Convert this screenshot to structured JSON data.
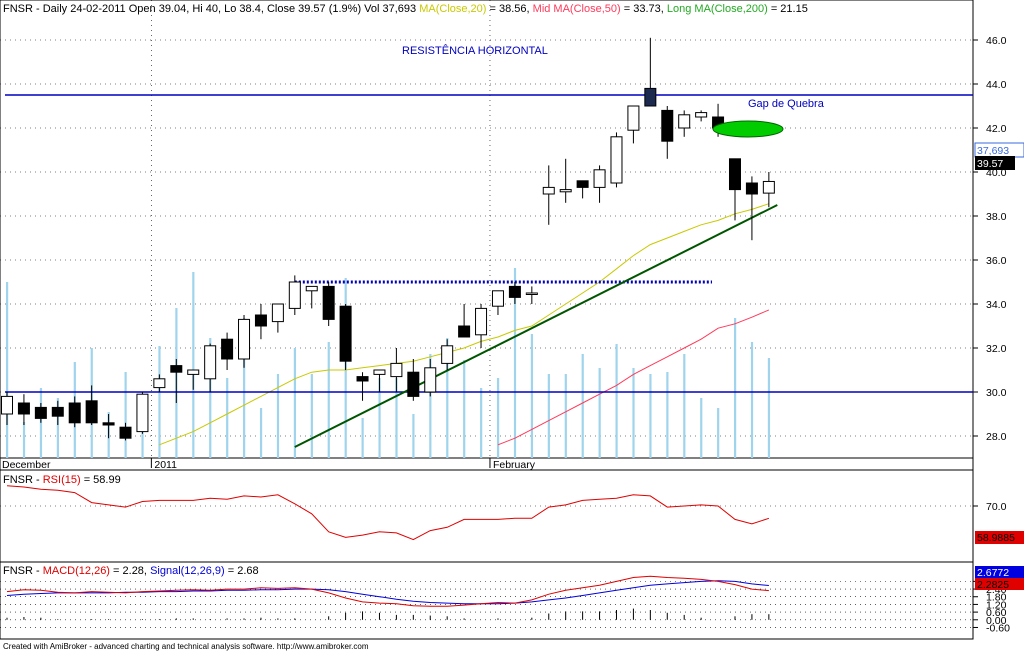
{
  "chart_data": [
    {
      "type": "candlestick",
      "header": {
        "prefix": "FNSR - Daily 24-02-2011 Open 39.04, Hi 40, Lo 38.4, Close 39.57 (1.9%) Vol 37,693",
        "ma_short": "MA(Close,20)",
        "ma_short_value": " = 38.56,",
        "ma_mid": "Mid MA(Close,50)",
        "ma_mid_value": " = 33.73,",
        "ma_long": "Long MA(Close,200)",
        "ma_long_value": " = 21.15"
      },
      "ylim": [
        27,
        47
      ],
      "yticks": [
        "46.0",
        "44.0",
        "42.0",
        "40.0",
        "38.0",
        "36.0",
        "34.0",
        "32.0",
        "30.0",
        "28.0"
      ],
      "xlabels": [
        {
          "label": "December",
          "bar": 0
        },
        {
          "label": "2011",
          "bar": 9
        },
        {
          "label": "February",
          "bar": 29
        }
      ],
      "value_labels": {
        "volume": "37,693",
        "close": "39.57"
      },
      "annotations": {
        "resistance_title": "RESISTÊNCIA HORIZONTAL",
        "gap_label": "Gap de Quebra"
      },
      "lines": {
        "resistance": 43.5,
        "support": 30.0,
        "dotted_level": 35.0,
        "trend_start": {
          "bar": 17,
          "price": 27.5
        },
        "trend_end": {
          "bar": 45.5,
          "price": 38.5
        }
      },
      "candles": [
        {
          "o": 29.0,
          "h": 30.0,
          "l": 28.5,
          "c": 29.8
        },
        {
          "o": 29.5,
          "h": 29.9,
          "l": 28.5,
          "c": 29.0
        },
        {
          "o": 29.3,
          "h": 29.5,
          "l": 28.6,
          "c": 28.8
        },
        {
          "o": 29.3,
          "h": 29.6,
          "l": 28.5,
          "c": 28.9
        },
        {
          "o": 29.5,
          "h": 29.8,
          "l": 28.4,
          "c": 28.6
        },
        {
          "o": 29.6,
          "h": 30.3,
          "l": 28.5,
          "c": 28.6
        },
        {
          "o": 28.6,
          "h": 29.0,
          "l": 27.9,
          "c": 28.5
        },
        {
          "o": 28.4,
          "h": 28.6,
          "l": 27.8,
          "c": 27.9
        },
        {
          "o": 28.2,
          "h": 30.0,
          "l": 28.1,
          "c": 29.9
        },
        {
          "o": 30.2,
          "h": 30.8,
          "l": 30.0,
          "c": 30.6
        },
        {
          "o": 31.2,
          "h": 31.5,
          "l": 29.5,
          "c": 30.9
        },
        {
          "o": 30.8,
          "h": 31.0,
          "l": 30.1,
          "c": 31.0
        },
        {
          "o": 30.6,
          "h": 32.2,
          "l": 30.0,
          "c": 32.1
        },
        {
          "o": 32.4,
          "h": 32.7,
          "l": 31.0,
          "c": 31.5
        },
        {
          "o": 31.5,
          "h": 33.5,
          "l": 31.1,
          "c": 33.3
        },
        {
          "o": 33.5,
          "h": 34.0,
          "l": 32.4,
          "c": 33.0
        },
        {
          "o": 33.2,
          "h": 34.0,
          "l": 32.7,
          "c": 34.0
        },
        {
          "o": 33.8,
          "h": 35.3,
          "l": 33.5,
          "c": 35.0
        },
        {
          "o": 34.6,
          "h": 34.8,
          "l": 33.8,
          "c": 34.8
        },
        {
          "o": 34.8,
          "h": 35.0,
          "l": 33.0,
          "c": 33.3
        },
        {
          "o": 33.9,
          "h": 34.0,
          "l": 31.0,
          "c": 31.4
        },
        {
          "o": 30.7,
          "h": 30.9,
          "l": 29.6,
          "c": 30.5
        },
        {
          "o": 30.8,
          "h": 31.0,
          "l": 30.0,
          "c": 31.0
        },
        {
          "o": 30.7,
          "h": 32.0,
          "l": 30.0,
          "c": 31.3
        },
        {
          "o": 30.9,
          "h": 31.5,
          "l": 29.6,
          "c": 29.8
        },
        {
          "o": 30.0,
          "h": 31.5,
          "l": 29.8,
          "c": 31.1
        },
        {
          "o": 31.3,
          "h": 32.4,
          "l": 31.0,
          "c": 32.1
        },
        {
          "o": 33.0,
          "h": 34.0,
          "l": 32.5,
          "c": 32.5
        },
        {
          "o": 32.6,
          "h": 34.0,
          "l": 32.0,
          "c": 33.8
        },
        {
          "o": 33.9,
          "h": 34.6,
          "l": 33.5,
          "c": 34.6
        },
        {
          "o": 34.8,
          "h": 35.0,
          "l": 34.0,
          "c": 34.3
        },
        {
          "o": 34.5,
          "h": 34.8,
          "l": 34.0,
          "c": 34.5
        },
        {
          "o": 39.0,
          "h": 40.3,
          "l": 37.6,
          "c": 39.3
        },
        {
          "o": 39.1,
          "h": 40.6,
          "l": 38.6,
          "c": 39.2
        },
        {
          "o": 39.6,
          "h": 39.6,
          "l": 38.8,
          "c": 39.3
        },
        {
          "o": 39.3,
          "h": 40.3,
          "l": 38.6,
          "c": 40.1
        },
        {
          "o": 39.5,
          "h": 41.8,
          "l": 39.3,
          "c": 41.6
        },
        {
          "o": 41.9,
          "h": 43.0,
          "l": 41.3,
          "c": 43.0
        },
        {
          "o": 43.8,
          "h": 46.1,
          "l": 43.0,
          "c": 43.0
        },
        {
          "o": 42.8,
          "h": 43.0,
          "l": 40.6,
          "c": 41.4
        },
        {
          "o": 42.0,
          "h": 42.8,
          "l": 41.6,
          "c": 42.6
        },
        {
          "o": 42.5,
          "h": 42.8,
          "l": 42.3,
          "c": 42.7
        },
        {
          "o": 42.5,
          "h": 43.1,
          "l": 41.6,
          "c": 42.0
        },
        {
          "o": 40.6,
          "h": 40.6,
          "l": 37.8,
          "c": 39.2
        },
        {
          "o": 39.5,
          "h": 39.8,
          "l": 36.9,
          "c": 39.0
        },
        {
          "o": 39.04,
          "h": 40.0,
          "l": 38.4,
          "c": 39.57
        }
      ],
      "volume_relative": [
        0.88,
        0.18,
        0.35,
        0.3,
        0.48,
        0.55,
        0.23,
        0.43,
        0.22,
        0.56,
        0.75,
        0.93,
        0.6,
        0.4,
        0.7,
        0.25,
        0.42,
        0.55,
        0.42,
        0.58,
        0.9,
        0.2,
        0.4,
        0.4,
        0.22,
        0.52,
        0.6,
        0.49,
        0.35,
        0.4,
        0.95,
        0.62,
        0.42,
        0.42,
        0.52,
        0.45,
        0.57,
        0.45,
        0.42,
        0.43,
        0.52,
        0.3,
        0.25,
        0.7,
        0.58,
        0.5
      ],
      "ma20": [
        null,
        null,
        null,
        null,
        null,
        null,
        null,
        null,
        null,
        27.6,
        27.9,
        28.2,
        28.6,
        29.0,
        29.4,
        29.8,
        30.2,
        30.6,
        30.9,
        31.0,
        31.0,
        31.1,
        31.2,
        31.3,
        31.4,
        31.6,
        31.8,
        32.0,
        32.3,
        32.5,
        32.8,
        33.0,
        33.5,
        34.0,
        34.5,
        35.0,
        35.6,
        36.2,
        36.7,
        37.0,
        37.3,
        37.6,
        37.8,
        38.1,
        38.3,
        38.56
      ],
      "ma50": [
        null,
        null,
        null,
        null,
        null,
        null,
        null,
        null,
        null,
        null,
        null,
        null,
        null,
        null,
        null,
        null,
        null,
        null,
        null,
        null,
        null,
        null,
        null,
        null,
        null,
        null,
        null,
        null,
        null,
        27.6,
        27.9,
        28.3,
        28.7,
        29.1,
        29.5,
        29.9,
        30.3,
        30.8,
        31.2,
        31.6,
        32.0,
        32.4,
        32.9,
        33.1,
        33.4,
        33.73
      ]
    },
    {
      "type": "line",
      "title_prefix": "FNSR - ",
      "series_name": "RSI(15)",
      "title_value": " = 58.99",
      "ylim": [
        20,
        95
      ],
      "yticks": [
        "70.0"
      ],
      "value_label": "58.9885",
      "values": [
        88,
        87,
        85,
        84,
        82,
        73,
        71,
        69,
        74,
        75,
        75,
        75,
        77,
        76,
        79,
        78,
        80,
        72,
        63,
        47,
        42,
        44,
        47,
        46,
        40,
        48,
        51,
        58,
        58,
        58,
        59,
        59,
        69,
        71,
        75,
        76,
        77,
        80,
        79,
        69,
        70,
        71,
        70,
        58,
        54,
        58.99
      ]
    },
    {
      "type": "line",
      "title_prefix": "FNSR - ",
      "macd_name": "MACD(12,26)",
      "macd_value": " = 2.28,",
      "signal_name": "Signal(12,26,9)",
      "signal_value": " = 2.68",
      "ylim": [
        -1.5,
        4.2
      ],
      "yticks": [
        "3.00",
        "2.40",
        "1.80",
        "1.20",
        "0.60",
        "0.00",
        "-0.60"
      ],
      "value_labels": {
        "signal": "2.6772",
        "macd": "2.2825"
      },
      "macd": [
        2.2,
        2.35,
        2.3,
        2.15,
        2.1,
        2.2,
        2.15,
        2.1,
        2.2,
        2.25,
        2.3,
        2.35,
        2.3,
        2.4,
        2.4,
        2.5,
        2.45,
        2.5,
        2.4,
        2.1,
        1.7,
        1.4,
        1.3,
        1.25,
        1.1,
        1.05,
        1.05,
        1.15,
        1.25,
        1.35,
        1.3,
        1.55,
        2.0,
        2.3,
        2.5,
        2.7,
        3.0,
        3.3,
        3.4,
        3.3,
        3.25,
        3.15,
        3.0,
        2.75,
        2.4,
        2.28
      ],
      "signal": [
        1.9,
        2.0,
        2.05,
        2.1,
        2.1,
        2.1,
        2.1,
        2.15,
        2.15,
        2.2,
        2.2,
        2.25,
        2.25,
        2.3,
        2.3,
        2.35,
        2.35,
        2.4,
        2.4,
        2.35,
        2.2,
        2.0,
        1.8,
        1.6,
        1.45,
        1.35,
        1.3,
        1.25,
        1.25,
        1.25,
        1.3,
        1.4,
        1.55,
        1.7,
        1.9,
        2.1,
        2.3,
        2.5,
        2.7,
        2.8,
        2.9,
        3.0,
        3.05,
        3.0,
        2.8,
        2.68
      ],
      "hist_relative": [
        0.15,
        0.2,
        0.15,
        0.05,
        0,
        0.05,
        0.05,
        0,
        0.05,
        0.05,
        0.1,
        0.1,
        0.05,
        0.1,
        0.1,
        0.15,
        0.1,
        0.1,
        0,
        0.25,
        0.5,
        0.6,
        0.5,
        0.35,
        0.35,
        0.3,
        0.25,
        0.1,
        0,
        0.1,
        0,
        0.15,
        0.45,
        0.6,
        0.6,
        0.6,
        0.7,
        0.8,
        0.7,
        0.5,
        0.35,
        0.15,
        0,
        0.25,
        0.4,
        0.4
      ]
    }
  ],
  "footer": {
    "text": "Created with AmiBroker - advanced charting and technical analysis software. http://www.amibroker.com"
  },
  "colors": {
    "background": "#ffffff",
    "bull_body": "#ffffff",
    "bear_body": "#000000",
    "candle_outline": "#000000",
    "highlight_body": "#1c2a50",
    "volume": "#9fd4ec",
    "ma20": "#c9c900",
    "ma50": "#ff3a5a",
    "ma200": "#22aa22",
    "horizontal_lines": "#0000c0",
    "trend_line": "#005500",
    "gap_ellipse": "#00cc00",
    "rsi": "#e00000",
    "macd": "#e00000",
    "signal": "#0000e0",
    "close_box": "#000000",
    "volume_box": "#3a6ae0",
    "rsi_box": "#e00000"
  }
}
